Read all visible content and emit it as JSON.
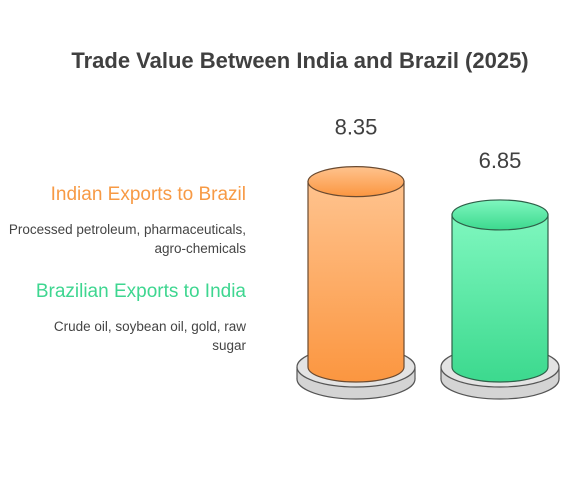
{
  "colors": {
    "india": "#f79a45",
    "brazil": "#3ed690",
    "title": "#404040"
  },
  "chart_data": {
    "type": "bar",
    "title": "Trade Value Between India and Brazil (2025)",
    "categories": [
      "Indian Exports to Brazil",
      "Brazilian Exports to India"
    ],
    "values": [
      8.35,
      6.85
    ],
    "value_labels": [
      "8.35",
      "6.85"
    ],
    "descriptions": [
      "Processed petroleum, pharmaceuticals, agro-chemicals",
      "Crude oil, soybean oil, gold, raw sugar"
    ],
    "grid": false,
    "legend_placement": "left"
  }
}
